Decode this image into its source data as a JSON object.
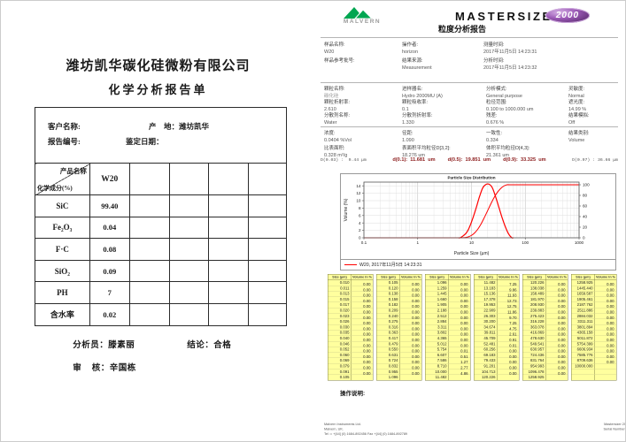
{
  "left": {
    "company": "潍坊凯华碳化硅微粉有限公司",
    "title": "化学分析报告单",
    "info": {
      "customer_label": "客户名称:",
      "origin_label": "产    地：潍坊凯华",
      "report_no_label": "报告编号:",
      "date_label": "鉴定日期："
    },
    "table": {
      "corner_top": "产品名称",
      "corner_bottom": "化学成分(%)",
      "product": "W20",
      "rows": [
        [
          "SiC",
          "99.40"
        ],
        [
          "Fe₂O₃",
          "0.04"
        ],
        [
          "F·C",
          "0.08"
        ],
        [
          "SiO₂",
          "0.09"
        ],
        [
          "PH",
          "7"
        ],
        [
          "含水率",
          "0.02"
        ]
      ]
    },
    "footer": {
      "analyst_label": "分析员：",
      "analyst": "滕素丽",
      "conclusion_label": "结论：",
      "conclusion": "合格",
      "reviewer_label": "审    核：",
      "reviewer": "辛国栋"
    }
  },
  "right": {
    "brand": {
      "malvern": "MALVERN",
      "product": "MASTERSIZER",
      "badge": "2000",
      "report_title": "粒度分析报告"
    },
    "sample_columns": [
      [
        {
          "label": "样品名称:",
          "value": "W20"
        },
        {
          "label": "样品参考批号:",
          "value": ""
        }
      ],
      [
        {
          "label": "操作者:",
          "value": "horizon"
        },
        {
          "label": "结果来源:",
          "value": "Measurement"
        }
      ],
      [
        {
          "label": "测量时间:",
          "value": "2017年11月5日 14:23:31"
        },
        {
          "label": "分析时间:",
          "value": "2017年11月5日 14:23:32"
        }
      ]
    ],
    "detail_columns": [
      [
        {
          "label": "颗粒名称:",
          "value": "碳化硅",
          "muted": true
        },
        {
          "label": "颗粒折射率:",
          "value": "2.610"
        },
        {
          "label": "分散剂名称:",
          "value": "Water"
        }
      ],
      [
        {
          "label": "进样器名:",
          "value": "Hydro 2000MU (A)"
        },
        {
          "label": "颗粒吸收率:",
          "value": "0.1"
        },
        {
          "label": "分散剂折射率:",
          "value": "1.330"
        }
      ],
      [
        {
          "label": "分析模式:",
          "value": "General purpose"
        },
        {
          "label": "粒径范围:",
          "value": "0.100    to    1000.000    um"
        },
        {
          "label": "残差:",
          "value": "0.676    %"
        }
      ],
      [
        {
          "label": "灵敏度:",
          "value": "Normal"
        },
        {
          "label": "遮光度:",
          "value": "14.99    %"
        },
        {
          "label": "结果模拟:",
          "value": "Off"
        }
      ]
    ],
    "stats_rows": [
      [
        {
          "label": "浓度:",
          "value": "0.0404    %Vol"
        },
        {
          "label": "径距:",
          "value": "1.090"
        },
        {
          "label": "一致性:",
          "value": "0.334"
        },
        {
          "label": "结果类别:",
          "value": "Volume"
        }
      ],
      [
        {
          "label": "比表面积:",
          "value": "0.328    m²/g"
        },
        {
          "label": "表面积平均粒径D[3,2]:",
          "value": "18.276    um"
        },
        {
          "label": "体积平均粒径D[4,3]:",
          "value": "21.361    um"
        }
      ]
    ],
    "percentiles": {
      "left_note": "D(0.03) :  9.44 μm",
      "items": [
        {
          "label": "d(0.1):",
          "value": "11.681",
          "unit": "um"
        },
        {
          "label": "d(0.5):",
          "value": "19.851",
          "unit": "um"
        },
        {
          "label": "d(0.9):",
          "value": "33.325",
          "unit": "um"
        }
      ],
      "right_note": "D(0.97) : 36.66 μm"
    },
    "ops_label": "操作说明:",
    "footer": {
      "left": [
        "Malvern Instruments Ltd.",
        "Malvern, UK.",
        "Tel := +[44] (0) 1684-892456 Fax +[44] (0) 1684-892789"
      ],
      "center": [
        "Mastersizer 2000 E Ver. 5.60",
        "Serial Number : MAL1095172"
      ],
      "right": [
        "File name: W20.mea",
        "Record Number: 12",
        "2018-8-26 10:10:26"
      ]
    }
  },
  "chart_data": {
    "type": "line",
    "title": "Particle Size Distribution",
    "xlabel": "Particle Size (µm)",
    "ylabel_left": "Volume (%)",
    "legend": "W20, 2017年11月5日 14:23:31",
    "series_color": "#ff0000",
    "x_log_range": [
      0.1,
      1000
    ],
    "xticks": [
      0.1,
      1,
      10,
      100,
      1000
    ],
    "ylim_left": [
      0,
      15
    ],
    "yticks_left": [
      0,
      2,
      4,
      6,
      8,
      10,
      12,
      14
    ],
    "ylim_right": [
      0,
      105
    ],
    "yticks_right": [
      0,
      20,
      40,
      60,
      80,
      100
    ],
    "grid": true,
    "legend_position": "bottom",
    "table_headers": [
      "Size (µm)",
      "Volume In %"
    ],
    "sizes": [
      "0.010",
      "0.011",
      "0.013",
      "0.015",
      "0.017",
      "0.020",
      "0.023",
      "0.026",
      "0.030",
      "0.035",
      "0.040",
      "0.046",
      "0.052",
      "0.060",
      "0.069",
      "0.079",
      "0.091",
      "0.105",
      "0.120",
      "0.138",
      "0.158",
      "0.182",
      "0.209",
      "0.240",
      "0.275",
      "0.316",
      "0.363",
      "0.417",
      "0.479",
      "0.550",
      "0.631",
      "0.724",
      "0.832",
      "0.955",
      "1.096",
      "1.259",
      "1.445",
      "1.660",
      "1.905",
      "2.188",
      "2.512",
      "2.884",
      "3.311",
      "3.802",
      "4.365",
      "5.012",
      "5.754",
      "6.607",
      "7.586",
      "8.710",
      "10.000",
      "11.482",
      "13.183",
      "15.136",
      "17.378",
      "19.953",
      "22.909",
      "26.303",
      "30.200",
      "34.674",
      "39.811",
      "45.709",
      "52.481",
      "60.256",
      "69.183",
      "79.433",
      "91.201",
      "104.713",
      "120.226",
      "138.038",
      "158.489",
      "181.970",
      "208.930",
      "239.883",
      "275.423",
      "316.228",
      "363.078",
      "416.869",
      "478.630",
      "549.541",
      "630.957",
      "724.436",
      "831.764",
      "954.993",
      "1096.478",
      "1258.925",
      "1445.440",
      "1659.587",
      "1905.461",
      "2187.762",
      "2511.886",
      "2884.032",
      "3311.311",
      "3801.894",
      "4365.158",
      "5011.872",
      "5754.399",
      "6606.934",
      "7585.776",
      "8709.636",
      "10000.000"
    ],
    "volumes": [
      "0.00",
      "0.00",
      "0.00",
      "0.00",
      "0.00",
      "0.00",
      "0.00",
      "0.00",
      "0.00",
      "0.00",
      "0.00",
      "0.00",
      "0.00",
      "0.00",
      "0.00",
      "0.00",
      "0.00",
      "0.00",
      "0.00",
      "0.00",
      "0.00",
      "0.00",
      "0.00",
      "0.00",
      "0.00",
      "0.00",
      "0.00",
      "0.00",
      "0.00",
      "0.00",
      "0.00",
      "0.00",
      "0.00",
      "0.00",
      "0.00",
      "0.00",
      "0.00",
      "0.00",
      "0.00",
      "0.00",
      "0.00",
      "0.00",
      "0.00",
      "0.00",
      "0.00",
      "0.00",
      "0.01",
      "0.51",
      "1.27",
      "2.77",
      "4.86",
      "7.25",
      "9.86",
      "11.93",
      "12.73",
      "12.75",
      "11.86",
      "9.70",
      "7.25",
      "4.75",
      "2.61",
      "0.91",
      "0.01",
      "0.00",
      "0.00",
      "0.00",
      "0.00",
      "0.00",
      "0.00",
      "0.00",
      "0.00",
      "0.00",
      "0.00",
      "0.00",
      "0.00",
      "0.00",
      "0.00",
      "0.00",
      "0.00",
      "0.00",
      "0.00",
      "0.00",
      "0.00",
      "0.00",
      "0.00",
      "0.00",
      "0.00",
      "0.00",
      "0.00",
      "0.00",
      "0.00",
      "0.00",
      "0.00",
      "0.00",
      "0.00",
      "0.00",
      "0.00",
      "0.00",
      "0.00",
      "0.00"
    ]
  }
}
